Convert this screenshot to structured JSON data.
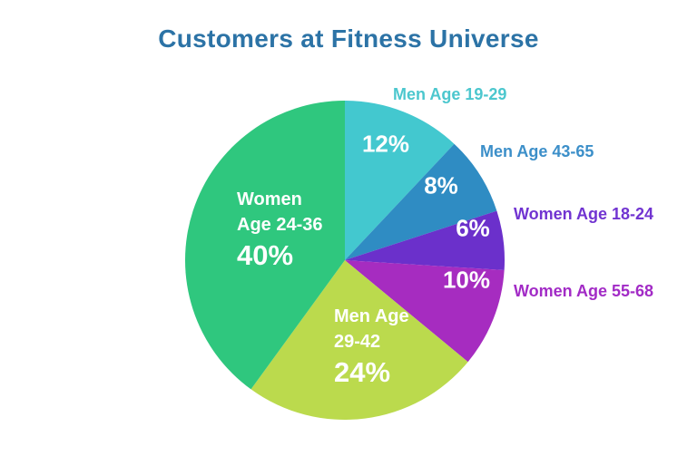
{
  "title": "Customers at Fitness Universe",
  "colors": {
    "title": "#2C73A6",
    "background": "#FFFFFF",
    "inside_text": "#FFFFFF"
  },
  "chart_data": {
    "type": "pie",
    "title": "Customers at Fitness Universe",
    "start_angle_deg": 0,
    "direction": "clockwise",
    "legend_position": "none",
    "total": 100,
    "slices": [
      {
        "label": "Men Age 19-29",
        "value": 12,
        "pct": "12%",
        "color": "#43C8CF",
        "label_color": "#4CC7CE",
        "label_placement": "outside"
      },
      {
        "label": "Men Age 43-65",
        "value": 8,
        "pct": "8%",
        "color": "#2F8CC3",
        "label_color": "#3C8FC9",
        "label_placement": "outside"
      },
      {
        "label": "Women Age 18-24",
        "value": 6,
        "pct": "6%",
        "color": "#6B30CB",
        "label_color": "#7134D1",
        "label_placement": "outside"
      },
      {
        "label": "Women Age 55-68",
        "value": 10,
        "pct": "10%",
        "color": "#A62CC0",
        "label_color": "#A22BC6",
        "label_placement": "outside"
      },
      {
        "label": "Men Age 29-42",
        "value": 24,
        "pct": "24%",
        "color": "#BBDA4D",
        "label_color": "#FFFFFF",
        "label_placement": "inside",
        "inside_lines": [
          "Men Age",
          "29-42"
        ]
      },
      {
        "label": "Women Age 24-36",
        "value": 40,
        "pct": "40%",
        "color": "#2FC77E",
        "label_color": "#FFFFFF",
        "label_placement": "inside",
        "inside_lines": [
          "Women",
          "Age 24-36"
        ]
      }
    ]
  }
}
